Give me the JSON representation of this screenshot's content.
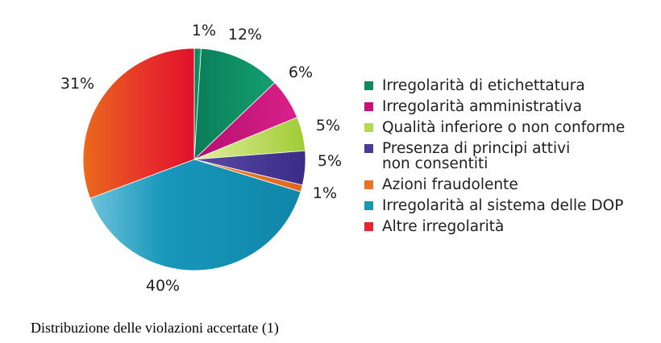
{
  "chart_data": {
    "type": "pie",
    "slices": [
      {
        "label": "",
        "value": 1,
        "value_label": "1%",
        "color": "#0e8a63"
      },
      {
        "label": "Irregolarità di etichettatura",
        "value": 12,
        "value_label": "12%",
        "color": "#0e8a63"
      },
      {
        "label": "Irregolarità amministrativa",
        "value": 6,
        "value_label": "6%",
        "color": "#c8117a"
      },
      {
        "label": "Qualità inferiore o non conforme",
        "value": 5,
        "value_label": "5%",
        "color": "#b6d84e"
      },
      {
        "label": "Presenza di principi attivi\nnon consentiti",
        "value": 5,
        "value_label": "5%",
        "color": "#4a3a96"
      },
      {
        "label": "Azioni fraudolente",
        "value": 1,
        "value_label": "1%",
        "color": "#e8742a"
      },
      {
        "label": "Irregolarità al sistema delle DOP",
        "value": 40,
        "value_label": "40%",
        "color": "#1797b8"
      },
      {
        "label": "Altre irregolarità",
        "value": 31,
        "value_label": "31%",
        "color": "#e3262f"
      }
    ],
    "legend_position": "right"
  },
  "legend": [
    {
      "label": "Irregolarità di etichettatura",
      "color": "#0e8a63"
    },
    {
      "label": "Irregolarità amministrativa",
      "color": "#c8117a"
    },
    {
      "label": "Qualità inferiore o non conforme",
      "color": "#b6d84e"
    },
    {
      "label": "Presenza di principi attivi\nnon consentiti",
      "color": "#4a3a96"
    },
    {
      "label": "Azioni fraudolente",
      "color": "#e8742a"
    },
    {
      "label": "Irregolarità al sistema delle DOP",
      "color": "#1797b8"
    },
    {
      "label": "Altre irregolarità",
      "color": "#e3262f"
    }
  ],
  "caption": "Distribuzione delle violazioni accertate (1)"
}
